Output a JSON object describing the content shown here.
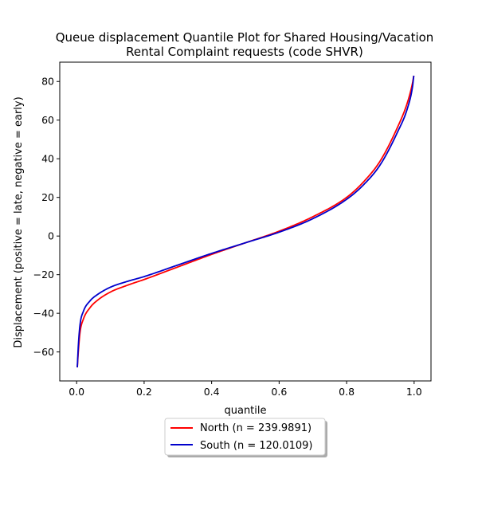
{
  "chart_data": {
    "type": "line",
    "title_line1": "Queue displacement Quantile Plot for Shared Housing/Vacation",
    "title_line2": "Rental Complaint  requests (code SHVR)",
    "xlabel": "quantile",
    "ylabel": "Displacement (positive = late, negative = early)",
    "xlim": [
      -0.05,
      1.05
    ],
    "ylim": [
      -75,
      90
    ],
    "xticks": [
      0.0,
      0.2,
      0.4,
      0.6,
      0.8,
      1.0
    ],
    "xtick_labels": [
      "0.0",
      "0.2",
      "0.4",
      "0.6",
      "0.8",
      "1.0"
    ],
    "yticks": [
      -60,
      -40,
      -20,
      0,
      20,
      40,
      60,
      80
    ],
    "ytick_labels": [
      "−60",
      "−40",
      "−20",
      "0",
      "20",
      "40",
      "60",
      "80"
    ],
    "grid": false,
    "legend_position": "below plot, centered",
    "series": [
      {
        "name": "North (n = 239.9891)",
        "color": "#ff0000",
        "x": [
          0.002,
          0.005,
          0.01,
          0.02,
          0.04,
          0.06,
          0.1,
          0.15,
          0.2,
          0.3,
          0.4,
          0.5,
          0.6,
          0.7,
          0.8,
          0.85,
          0.9,
          0.95,
          0.98,
          0.995,
          0.999
        ],
        "y": [
          -68,
          -60,
          -50,
          -43,
          -37,
          -33.5,
          -29,
          -25.5,
          -22.5,
          -16,
          -9.5,
          -3.5,
          2.5,
          10,
          20,
          28,
          39,
          56,
          69,
          79,
          83
        ]
      },
      {
        "name": "South (n = 120.0109)",
        "color": "#0000cc",
        "x": [
          0.002,
          0.005,
          0.01,
          0.02,
          0.04,
          0.06,
          0.1,
          0.15,
          0.2,
          0.3,
          0.4,
          0.5,
          0.6,
          0.7,
          0.8,
          0.85,
          0.9,
          0.95,
          0.98,
          0.995,
          0.999
        ],
        "y": [
          -68,
          -57,
          -46,
          -39,
          -33.5,
          -30.5,
          -26.5,
          -23.5,
          -21,
          -15,
          -9,
          -3.5,
          2,
          9,
          19,
          26.5,
          37,
          53.5,
          66,
          77,
          83
        ]
      }
    ]
  }
}
